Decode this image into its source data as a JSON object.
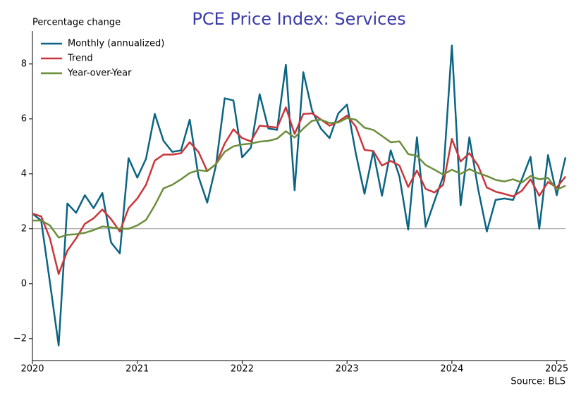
{
  "chart_data": {
    "type": "line",
    "title": "PCE Price Index: Services",
    "y_label": "Percentage change",
    "source": "Source: BLS",
    "x": [
      2020,
      2020.0833,
      2020.1667,
      2020.25,
      2020.3333,
      2020.4167,
      2020.5,
      2020.5833,
      2020.6667,
      2020.75,
      2020.8333,
      2020.9167,
      2021,
      2021.0833,
      2021.1667,
      2021.25,
      2021.3333,
      2021.4167,
      2021.5,
      2021.5833,
      2021.6667,
      2021.75,
      2021.8333,
      2021.9167,
      2022,
      2022.0833,
      2022.1667,
      2022.25,
      2022.3333,
      2022.4167,
      2022.5,
      2022.5833,
      2022.6667,
      2022.75,
      2022.8333,
      2022.9167,
      2023,
      2023.0833,
      2023.1667,
      2023.25,
      2023.3333,
      2023.4167,
      2023.5,
      2023.5833,
      2023.6667,
      2023.75,
      2023.8333,
      2023.9167,
      2024,
      2024.0833,
      2024.1667,
      2024.25,
      2024.3333,
      2024.4167,
      2024.5,
      2024.5833,
      2024.6667,
      2024.75,
      2024.8333,
      2024.9167,
      2025,
      2025.0833
    ],
    "series": [
      {
        "name": "Monthly (annualized)",
        "color": "#0b6483",
        "values": [
          2.55,
          2.3,
          0.05,
          -2.25,
          2.92,
          2.58,
          3.22,
          2.75,
          3.3,
          1.5,
          1.1,
          4.57,
          3.86,
          4.55,
          6.18,
          5.2,
          4.8,
          4.85,
          5.97,
          3.9,
          2.95,
          4.3,
          6.75,
          6.67,
          4.6,
          4.95,
          6.9,
          5.65,
          5.6,
          7.97,
          3.4,
          7.7,
          6.3,
          5.65,
          5.3,
          6.2,
          6.52,
          4.75,
          3.27,
          4.82,
          3.2,
          4.85,
          3.9,
          1.97,
          5.33,
          2.07,
          3.0,
          3.9,
          8.67,
          2.85,
          5.33,
          3.45,
          1.9,
          3.05,
          3.1,
          3.05,
          3.8,
          4.62,
          2.0,
          4.68,
          3.22,
          4.6
        ]
      },
      {
        "name": "Trend",
        "color": "#c9363a",
        "values": [
          2.55,
          2.45,
          1.65,
          0.35,
          1.2,
          1.65,
          2.18,
          2.38,
          2.7,
          2.35,
          1.9,
          2.75,
          3.1,
          3.6,
          4.48,
          4.7,
          4.7,
          4.75,
          5.15,
          4.8,
          4.1,
          4.35,
          5.1,
          5.62,
          5.3,
          5.18,
          5.75,
          5.72,
          5.68,
          6.42,
          5.45,
          6.18,
          6.2,
          5.98,
          5.75,
          5.9,
          6.12,
          5.72,
          4.87,
          4.83,
          4.3,
          4.47,
          4.3,
          3.52,
          4.12,
          3.45,
          3.32,
          3.6,
          5.27,
          4.45,
          4.75,
          4.3,
          3.5,
          3.35,
          3.27,
          3.18,
          3.38,
          3.8,
          3.2,
          3.7,
          3.5,
          3.9
        ]
      },
      {
        "name": "Year-over-Year",
        "color": "#6b8e3a",
        "values": [
          2.3,
          2.3,
          2.12,
          1.68,
          1.78,
          1.8,
          1.85,
          1.95,
          2.08,
          2.05,
          2.0,
          2.0,
          2.12,
          2.32,
          2.85,
          3.47,
          3.6,
          3.8,
          4.03,
          4.13,
          4.1,
          4.35,
          4.8,
          5.0,
          5.07,
          5.1,
          5.17,
          5.2,
          5.28,
          5.55,
          5.32,
          5.65,
          5.93,
          5.97,
          5.85,
          5.87,
          6.03,
          5.97,
          5.68,
          5.6,
          5.38,
          5.15,
          5.18,
          4.72,
          4.65,
          4.32,
          4.15,
          3.97,
          4.15,
          4.0,
          4.17,
          4.03,
          3.92,
          3.78,
          3.72,
          3.8,
          3.68,
          3.92,
          3.8,
          3.85,
          3.42,
          3.57
        ]
      }
    ],
    "xlim": [
      2020,
      2025.0833
    ],
    "xticks": [
      2020,
      2021,
      2022,
      2023,
      2024,
      2025
    ],
    "ylim": [
      -2.8,
      9.2
    ],
    "yticks": [
      {
        "value": -2,
        "label": "−2"
      },
      0,
      2,
      4,
      6,
      8
    ],
    "hline": 2,
    "legend": "upper-left",
    "title_color": "#3a3aa8"
  }
}
